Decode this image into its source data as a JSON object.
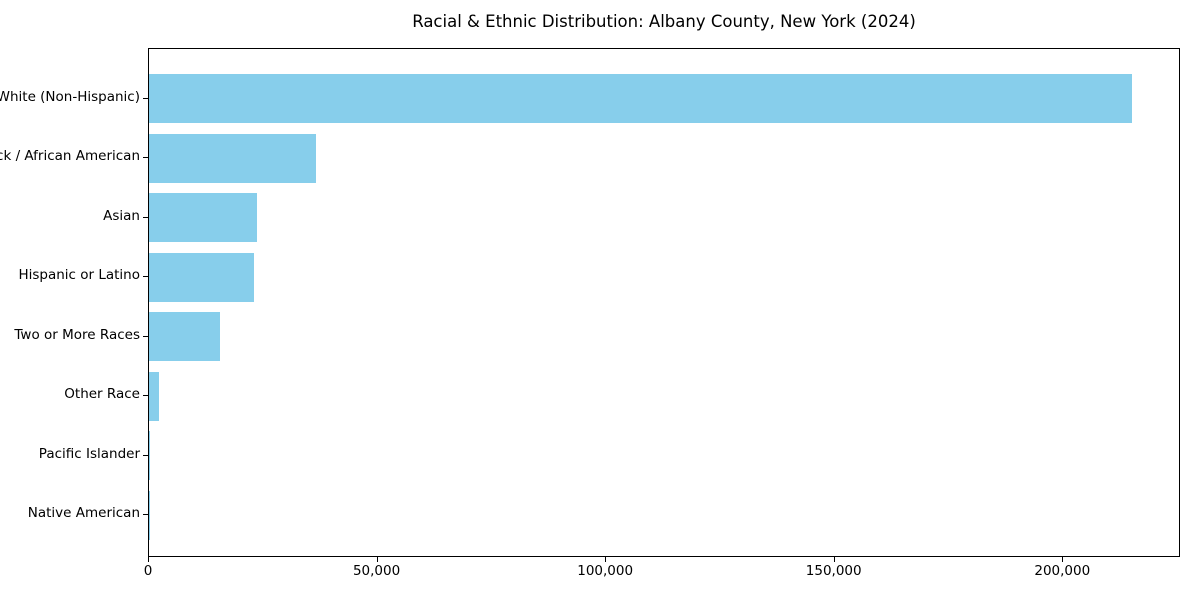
{
  "chart_data": {
    "type": "bar",
    "orientation": "horizontal",
    "title": "Racial & Ethnic Distribution: Albany County, New York (2024)",
    "categories": [
      "White (Non-Hispanic)",
      "Black / African American",
      "Asian",
      "Hispanic or Latino",
      "Two or More Races",
      "Other Race",
      "Pacific Islander",
      "Native American"
    ],
    "values": [
      215000,
      36600,
      23600,
      23000,
      15500,
      2200,
      150,
      100
    ],
    "bar_color": "#87CEEB",
    "xlabel": "",
    "ylabel": "",
    "xlim": [
      0,
      225750
    ],
    "xticks": [
      0,
      50000,
      100000,
      150000,
      200000
    ],
    "xtick_labels": [
      "0",
      "50,000",
      "100,000",
      "150,000",
      "200,000"
    ],
    "grid": false,
    "legend": false,
    "sort_order": "descending",
    "background_color": "#ffffff",
    "text_color": "#000000"
  }
}
